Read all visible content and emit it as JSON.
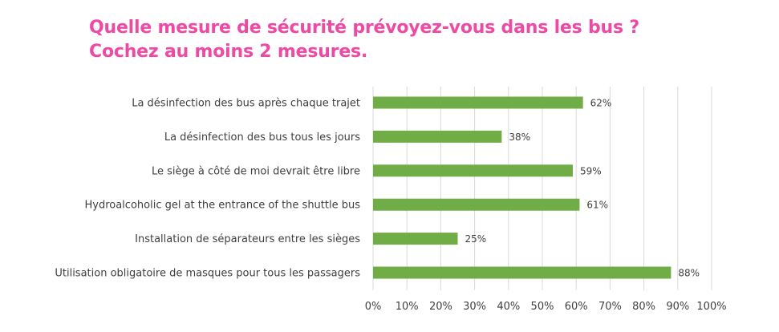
{
  "title": {
    "line1": "Quelle mesure de sécurité prévoyez-vous dans les bus ?",
    "line2": "Cochez au moins 2 mesures."
  },
  "colors": {
    "title": "#ec4aa4",
    "bar": "#70ad47",
    "grid": "#d9d9d9",
    "text": "#3f3f3f"
  },
  "chart_data": {
    "type": "bar",
    "orientation": "horizontal",
    "categories": [
      "La désinfection des bus après chaque trajet",
      "La désinfection des bus tous les jours",
      "Le siège à côté de moi devrait être libre",
      "Hydroalcoholic gel at the entrance of the shuttle bus",
      "Installation de séparateurs entre les sièges",
      "Utilisation obligatoire de masques pour tous les passagers"
    ],
    "values": [
      62,
      38,
      59,
      61,
      25,
      88
    ],
    "data_labels": [
      "62%",
      "38%",
      "59%",
      "61%",
      "25%",
      "88%"
    ],
    "x_ticks": [
      "0%",
      "10%",
      "20%",
      "30%",
      "40%",
      "50%",
      "60%",
      "70%",
      "80%",
      "90%",
      "100%"
    ],
    "xlim": [
      0,
      100
    ],
    "grid": "vertical",
    "legend": "none"
  }
}
